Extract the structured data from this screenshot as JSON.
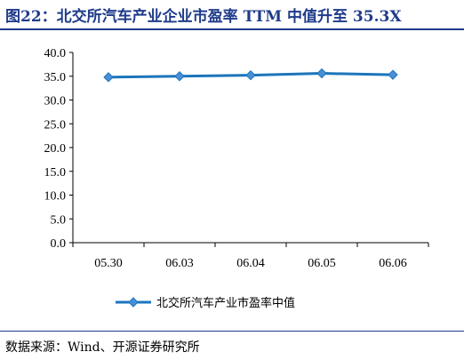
{
  "title": "图22：北交所汽车产业企业市盈率 TTM 中值升至 35.3X",
  "source": "数据来源：Wind、开源证券研究所",
  "colors": {
    "title": "#1f3b8a",
    "series": "#1b75bc",
    "axis": "#000000"
  },
  "chart_data": {
    "type": "line",
    "categories": [
      "05.30",
      "06.03",
      "06.04",
      "06.05",
      "06.06"
    ],
    "series": [
      {
        "name": "北交所汽车产业市盈率中值",
        "values": [
          34.8,
          35.0,
          35.2,
          35.6,
          35.3
        ]
      }
    ],
    "ylim": [
      0,
      40
    ],
    "yticks": [
      "0.0",
      "5.0",
      "10.0",
      "15.0",
      "20.0",
      "25.0",
      "30.0",
      "35.0",
      "40.0"
    ],
    "xlabel": "",
    "ylabel": "",
    "grid": false,
    "legend": "bottom"
  }
}
